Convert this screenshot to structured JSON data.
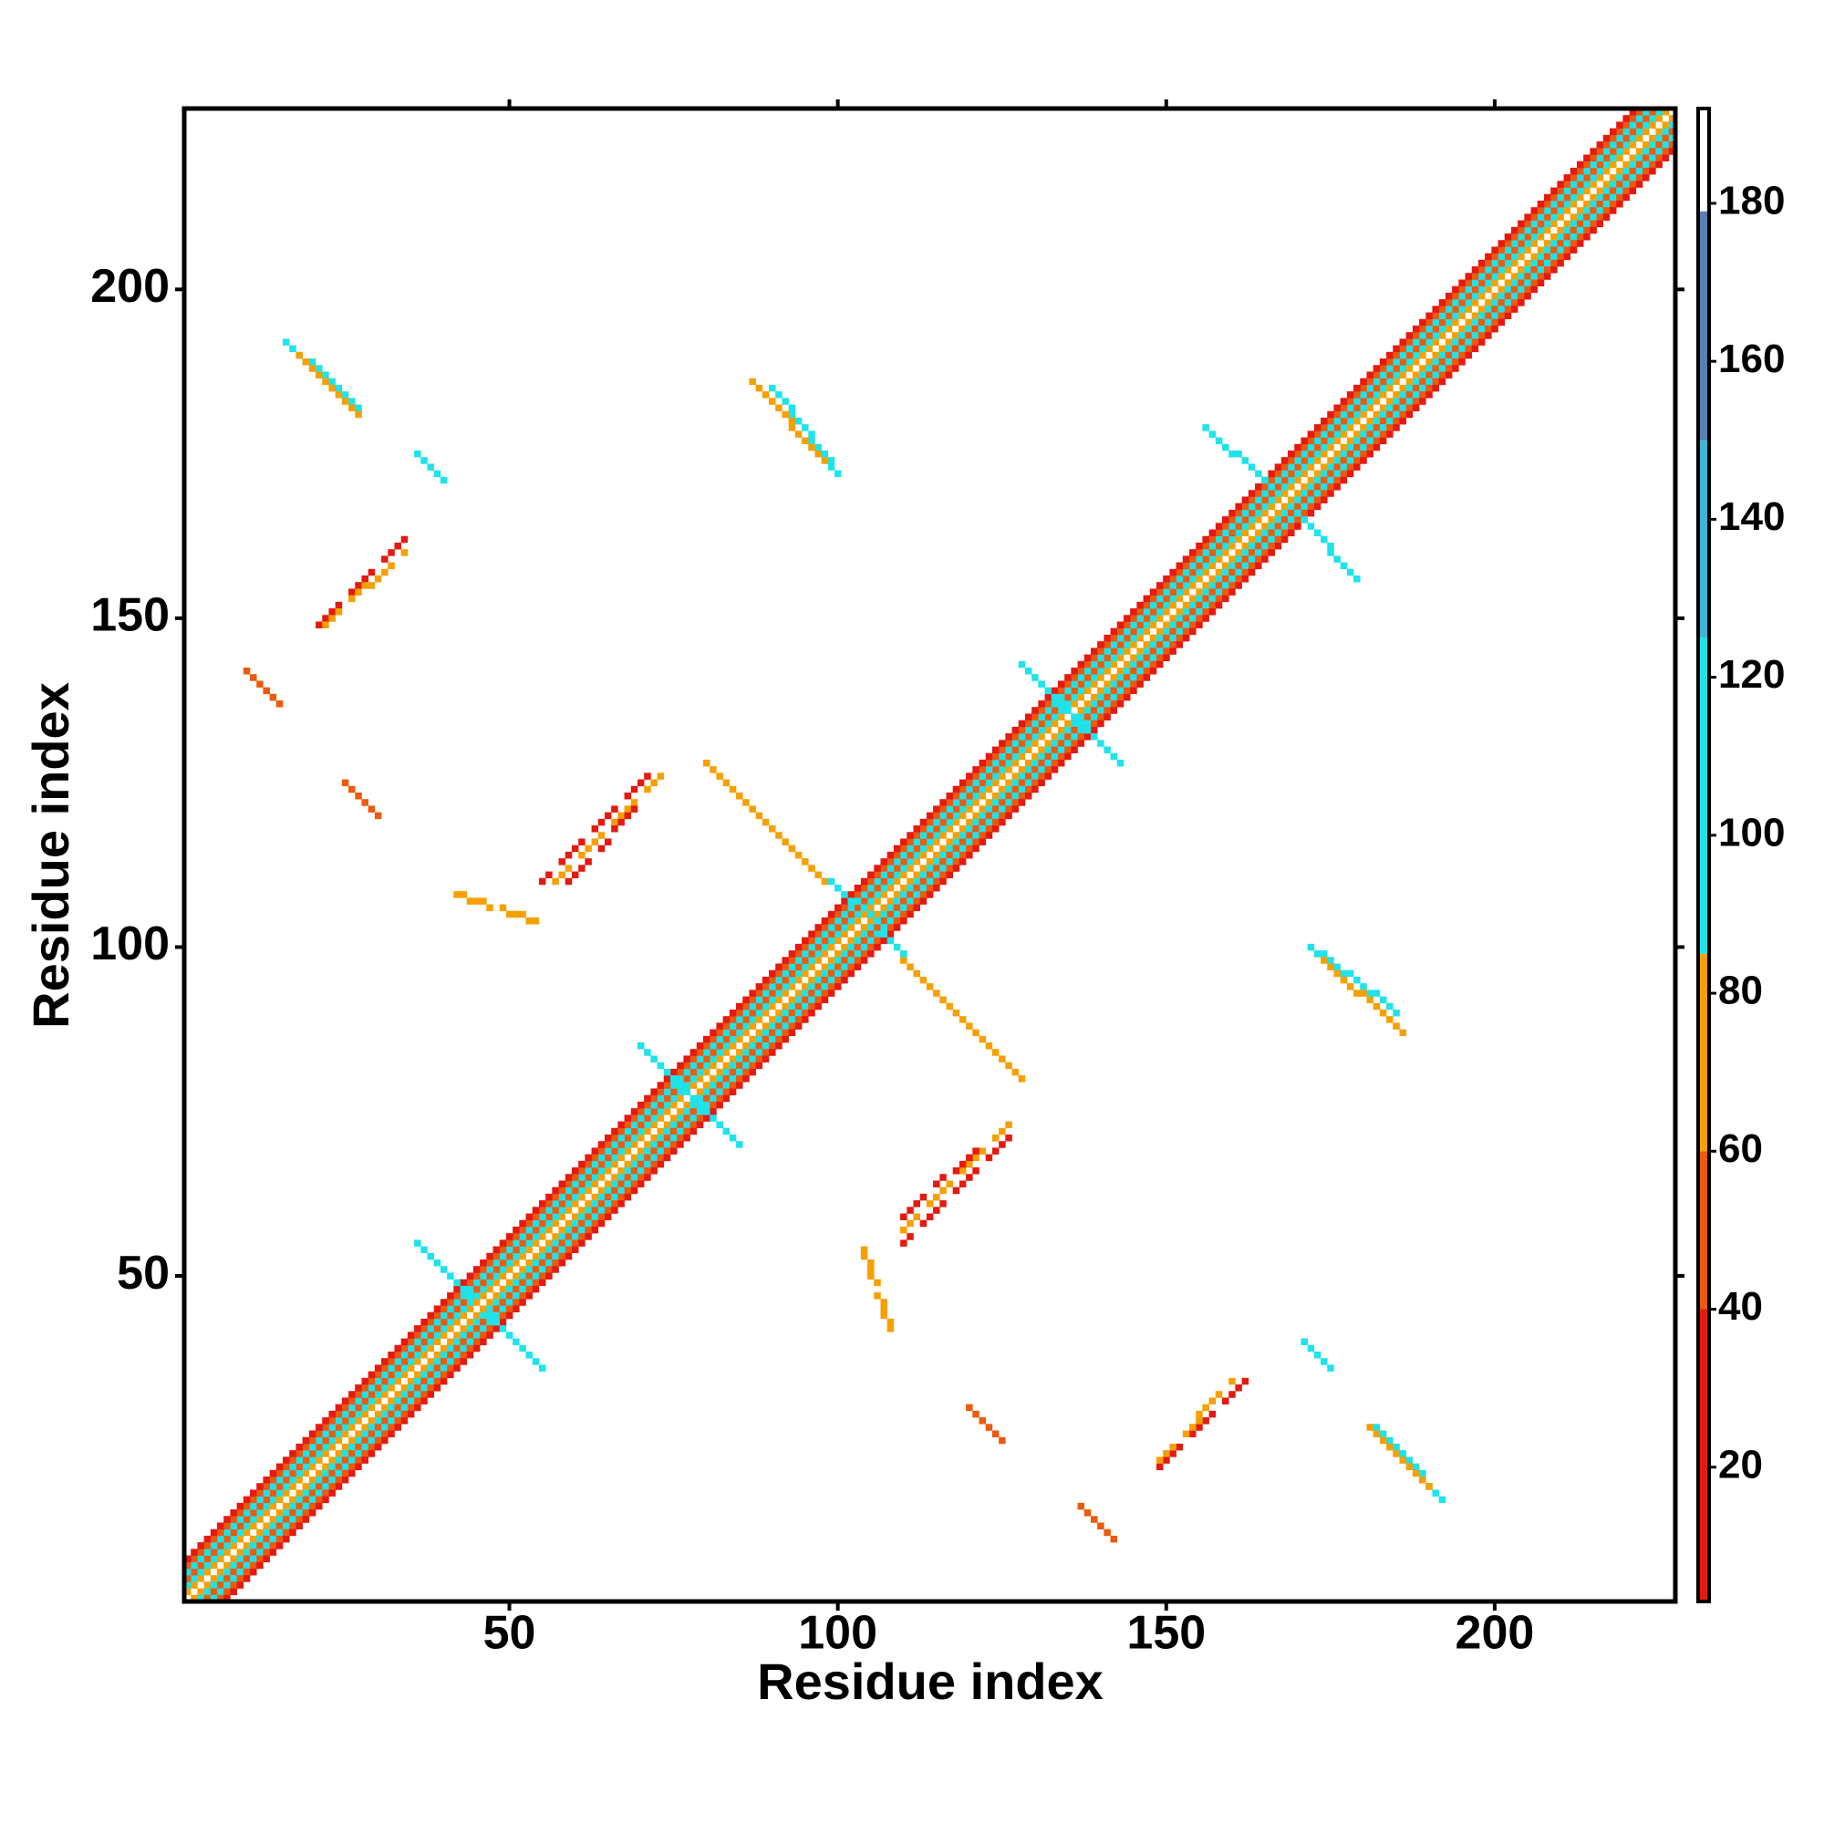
{
  "chart_data": {
    "type": "contact_map",
    "xlabel": "Residue index",
    "ylabel": "Residue index",
    "xlim": [
      0.5,
      227.5
    ],
    "ylim": [
      0.5,
      227.5
    ],
    "xticks": [
      50,
      100,
      150,
      200
    ],
    "yticks": [
      50,
      100,
      150,
      200
    ],
    "colorbar": {
      "lim": [
        3,
        192
      ],
      "ticks": [
        20,
        40,
        60,
        80,
        100,
        120,
        140,
        160,
        180
      ],
      "stops": [
        3,
        40,
        60,
        85,
        125,
        150,
        179,
        192
      ],
      "colors": [
        "#e41a10",
        "#ec5a0c",
        "#f6a000",
        "#1fe3ea",
        "#3cb6d6",
        "#5b80b2",
        "#ffffff"
      ]
    },
    "diagonal": {
      "start": 1,
      "end": 227,
      "offsets": [
        1,
        2,
        3,
        4,
        5,
        6
      ],
      "values": [
        70,
        100,
        50,
        95,
        45,
        20
      ]
    },
    "segments": [
      {
        "x": [
          16,
          40
        ],
        "y": [
          192,
          171
        ],
        "value": 100
      },
      {
        "x": [
          18,
          38
        ],
        "y": [
          190,
          171
        ],
        "value": 70
      },
      {
        "x": [
          20,
          34
        ],
        "y": [
          148,
          162
        ],
        "value": 30
      },
      {
        "x": [
          22,
          34
        ],
        "y": [
          149,
          160
        ],
        "value": 65
      },
      {
        "x": [
          88,
          100
        ],
        "y": [
          188,
          172
        ],
        "value": 100
      },
      {
        "x": [
          87,
          98
        ],
        "y": [
          186,
          174
        ],
        "value": 70
      },
      {
        "x": [
          55,
          71
        ],
        "y": [
          110,
          126
        ],
        "value": 40
      },
      {
        "x": [
          57,
          73
        ],
        "y": [
          110,
          126
        ],
        "value": 70
      },
      {
        "x": [
          59,
          70
        ],
        "y": [
          110,
          122
        ],
        "value": 20
      },
      {
        "x": [
          10,
          30
        ],
        "y": [
          142,
          120
        ],
        "value": 60
      },
      {
        "x": [
          80,
          98
        ],
        "y": [
          128,
          110
        ],
        "value": 70
      },
      {
        "x": [
          42,
          54
        ],
        "y": [
          108,
          104
        ],
        "value": 75
      },
      {
        "x": [
          36,
          44
        ],
        "y": [
          55,
          47
        ],
        "value": 100
      },
      {
        "x": [
          70,
          77
        ],
        "y": [
          85,
          78
        ],
        "value": 100
      },
      {
        "x": [
          99,
          106
        ],
        "y": [
          110,
          104
        ],
        "value": 100
      },
      {
        "x": [
          128,
          135
        ],
        "y": [
          143,
          136
        ],
        "value": 100
      },
      {
        "x": [
          156,
          166
        ],
        "y": [
          179,
          170
        ],
        "value": 100
      }
    ]
  }
}
